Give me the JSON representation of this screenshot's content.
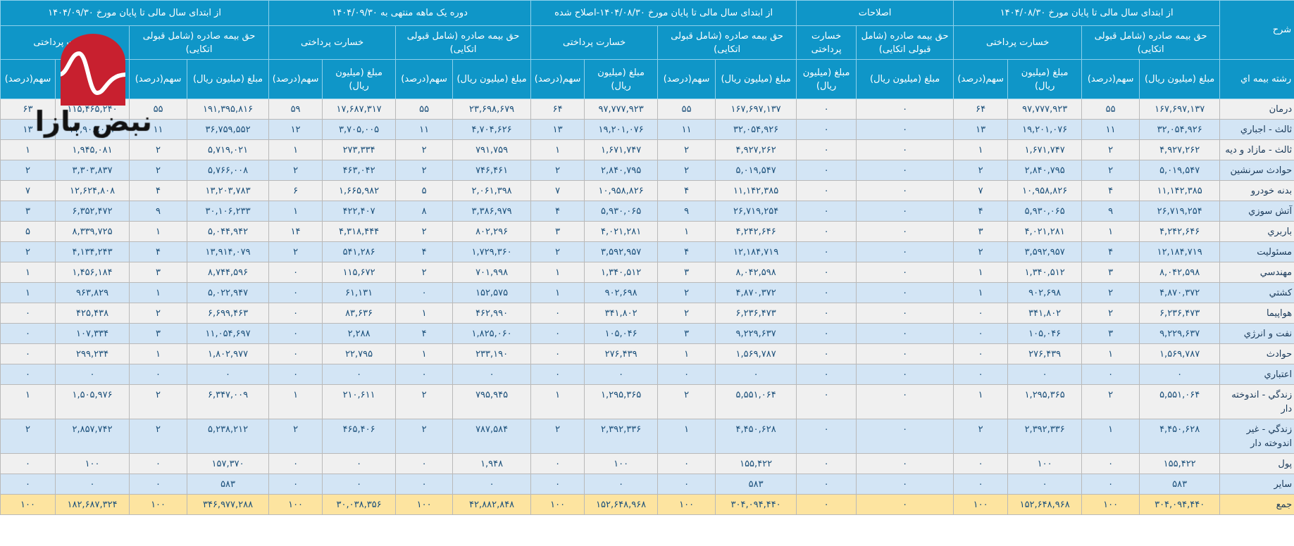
{
  "header": {
    "desc": "شرح",
    "row_label_header": "رشته بیمه اي",
    "groups": [
      "از ابتدای سال مالی تا پایان مورخ ۱۴۰۴/۰۸/۳۰",
      "اصلاحات",
      "از ابتدای سال مالی تا پایان مورخ ۱۴۰۴/۰۸/۳۰-اصلاح شده",
      "دوره یک ماهه منتهی به ۱۴۰۴/۰۹/۳۰",
      "از ابتدای سال مالی تا پایان مورخ ۱۴۰۴/۰۹/۳۰"
    ],
    "premium": "حق بیمه صادره (شامل قبولی اتکایی)",
    "loss": "خسارت پرداختی",
    "amount": "مبلغ (میلیون ریال)",
    "share": "سهم(درصد)"
  },
  "colors": {
    "header": "#0f96c8",
    "row_odd": "#f0f0f0",
    "row_even": "#d3e5f5",
    "total": "#fde4a0",
    "text": "#1a4f7a"
  },
  "logo": {
    "text": "نبض بازار",
    "color": "#c8202f"
  },
  "rows": [
    {
      "label": "درمان",
      "values": [
        "۱۶۷,۶۹۷,۱۳۷",
        "۵۵",
        "۹۷,۷۷۷,۹۲۳",
        "۶۴",
        "۰",
        "۰",
        "۱۶۷,۶۹۷,۱۳۷",
        "۵۵",
        "۹۷,۷۷۷,۹۲۳",
        "۶۴",
        "۲۳,۶۹۸,۶۷۹",
        "۵۵",
        "۱۷,۶۸۷,۳۱۷",
        "۵۹",
        "۱۹۱,۳۹۵,۸۱۶",
        "۵۵",
        "۱۱۵,۴۶۵,۲۴۰",
        "۶۳"
      ]
    },
    {
      "label": "ثالث - اجباري",
      "values": [
        "۳۲,۰۵۴,۹۲۶",
        "۱۱",
        "۱۹,۲۰۱,۰۷۶",
        "۱۳",
        "۰",
        "۰",
        "۳۲,۰۵۴,۹۲۶",
        "۱۱",
        "۱۹,۲۰۱,۰۷۶",
        "۱۳",
        "۴,۷۰۴,۶۲۶",
        "۱۱",
        "۳,۷۰۵,۰۰۵",
        "۱۲",
        "۳۶,۷۵۹,۵۵۲",
        "۱۱",
        "۲۲,۹۰۶,۰۸۱",
        "۱۳"
      ]
    },
    {
      "label": "ثالث - مازاد و ديه",
      "values": [
        "۴,۹۲۷,۲۶۲",
        "۲",
        "۱,۶۷۱,۷۴۷",
        "۱",
        "۰",
        "۰",
        "۴,۹۲۷,۲۶۲",
        "۲",
        "۱,۶۷۱,۷۴۷",
        "۱",
        "۷۹۱,۷۵۹",
        "۲",
        "۲۷۳,۳۳۴",
        "۱",
        "۵,۷۱۹,۰۲۱",
        "۲",
        "۱,۹۴۵,۰۸۱",
        "۱"
      ]
    },
    {
      "label": "حوادث سرنشين",
      "values": [
        "۵,۰۱۹,۵۴۷",
        "۲",
        "۲,۸۴۰,۷۹۵",
        "۲",
        "۰",
        "۰",
        "۵,۰۱۹,۵۴۷",
        "۲",
        "۲,۸۴۰,۷۹۵",
        "۲",
        "۷۴۶,۴۶۱",
        "۲",
        "۴۶۳,۰۴۲",
        "۲",
        "۵,۷۶۶,۰۰۸",
        "۲",
        "۳,۳۰۳,۸۳۷",
        "۲"
      ]
    },
    {
      "label": "بدنه خودرو",
      "values": [
        "۱۱,۱۴۲,۳۸۵",
        "۴",
        "۱۰,۹۵۸,۸۲۶",
        "۷",
        "۰",
        "۰",
        "۱۱,۱۴۲,۳۸۵",
        "۴",
        "۱۰,۹۵۸,۸۲۶",
        "۷",
        "۲,۰۶۱,۳۹۸",
        "۵",
        "۱,۶۶۵,۹۸۲",
        "۶",
        "۱۳,۲۰۳,۷۸۳",
        "۴",
        "۱۲,۶۲۴,۸۰۸",
        "۷"
      ]
    },
    {
      "label": "آتش سوزي",
      "values": [
        "۲۶,۷۱۹,۲۵۴",
        "۹",
        "۵,۹۳۰,۰۶۵",
        "۴",
        "۰",
        "۰",
        "۲۶,۷۱۹,۲۵۴",
        "۹",
        "۵,۹۳۰,۰۶۵",
        "۴",
        "۳,۳۸۶,۹۷۹",
        "۸",
        "۴۲۲,۴۰۷",
        "۱",
        "۳۰,۱۰۶,۲۳۳",
        "۹",
        "۶,۳۵۲,۴۷۲",
        "۳"
      ]
    },
    {
      "label": "باربري",
      "values": [
        "۴,۲۴۲,۶۴۶",
        "۱",
        "۴,۰۲۱,۲۸۱",
        "۳",
        "۰",
        "۰",
        "۴,۲۴۲,۶۴۶",
        "۱",
        "۴,۰۲۱,۲۸۱",
        "۳",
        "۸۰۲,۲۹۶",
        "۲",
        "۴,۳۱۸,۴۴۴",
        "۱۴",
        "۵,۰۴۴,۹۴۲",
        "۱",
        "۸,۳۳۹,۷۲۵",
        "۵"
      ]
    },
    {
      "label": "مسئوليت",
      "values": [
        "۱۲,۱۸۴,۷۱۹",
        "۴",
        "۳,۵۹۲,۹۵۷",
        "۲",
        "۰",
        "۰",
        "۱۲,۱۸۴,۷۱۹",
        "۴",
        "۳,۵۹۲,۹۵۷",
        "۲",
        "۱,۷۲۹,۳۶۰",
        "۴",
        "۵۴۱,۲۸۶",
        "۲",
        "۱۳,۹۱۴,۰۷۹",
        "۴",
        "۴,۱۳۴,۲۴۳",
        "۲"
      ]
    },
    {
      "label": "مهندسي",
      "values": [
        "۸,۰۴۲,۵۹۸",
        "۳",
        "۱,۳۴۰,۵۱۲",
        "۱",
        "۰",
        "۰",
        "۸,۰۴۲,۵۹۸",
        "۳",
        "۱,۳۴۰,۵۱۲",
        "۱",
        "۷۰۱,۹۹۸",
        "۲",
        "۱۱۵,۶۷۲",
        "۰",
        "۸,۷۴۴,۵۹۶",
        "۳",
        "۱,۴۵۶,۱۸۴",
        "۱"
      ]
    },
    {
      "label": "كشتي",
      "values": [
        "۴,۸۷۰,۳۷۲",
        "۲",
        "۹۰۲,۶۹۸",
        "۱",
        "۰",
        "۰",
        "۴,۸۷۰,۳۷۲",
        "۲",
        "۹۰۲,۶۹۸",
        "۱",
        "۱۵۲,۵۷۵",
        "۰",
        "۶۱,۱۳۱",
        "۰",
        "۵,۰۲۲,۹۴۷",
        "۱",
        "۹۶۳,۸۲۹",
        "۱"
      ]
    },
    {
      "label": "هواپيما",
      "values": [
        "۶,۲۳۶,۴۷۳",
        "۲",
        "۳۴۱,۸۰۲",
        "۰",
        "۰",
        "۰",
        "۶,۲۳۶,۴۷۳",
        "۲",
        "۳۴۱,۸۰۲",
        "۰",
        "۴۶۲,۹۹۰",
        "۱",
        "۸۳,۶۳۶",
        "۰",
        "۶,۶۹۹,۴۶۳",
        "۲",
        "۴۲۵,۴۳۸",
        "۰"
      ]
    },
    {
      "label": "نفت و انرژي",
      "values": [
        "۹,۲۲۹,۶۳۷",
        "۳",
        "۱۰۵,۰۴۶",
        "۰",
        "۰",
        "۰",
        "۹,۲۲۹,۶۳۷",
        "۳",
        "۱۰۵,۰۴۶",
        "۰",
        "۱,۸۲۵,۰۶۰",
        "۴",
        "۲,۲۸۸",
        "۰",
        "۱۱,۰۵۴,۶۹۷",
        "۳",
        "۱۰۷,۳۳۴",
        "۰"
      ]
    },
    {
      "label": "حوادث",
      "values": [
        "۱,۵۶۹,۷۸۷",
        "۱",
        "۲۷۶,۴۳۹",
        "۰",
        "۰",
        "۰",
        "۱,۵۶۹,۷۸۷",
        "۱",
        "۲۷۶,۴۳۹",
        "۰",
        "۲۳۳,۱۹۰",
        "۱",
        "۲۲,۷۹۵",
        "۰",
        "۱,۸۰۲,۹۷۷",
        "۱",
        "۲۹۹,۲۳۴",
        "۰"
      ]
    },
    {
      "label": "اعتباري",
      "values": [
        "۰",
        "۰",
        "۰",
        "۰",
        "۰",
        "۰",
        "۰",
        "۰",
        "۰",
        "۰",
        "۰",
        "۰",
        "۰",
        "۰",
        "۰",
        "۰",
        "۰",
        "۰"
      ]
    },
    {
      "label": "زندگي - اندوخته دار",
      "values": [
        "۵,۵۵۱,۰۶۴",
        "۲",
        "۱,۲۹۵,۳۶۵",
        "۱",
        "۰",
        "۰",
        "۵,۵۵۱,۰۶۴",
        "۲",
        "۱,۲۹۵,۳۶۵",
        "۱",
        "۷۹۵,۹۴۵",
        "۲",
        "۲۱۰,۶۱۱",
        "۱",
        "۶,۳۴۷,۰۰۹",
        "۲",
        "۱,۵۰۵,۹۷۶",
        "۱"
      ]
    },
    {
      "label": "زندگي - غير اندوخته دار",
      "values": [
        "۴,۴۵۰,۶۲۸",
        "۱",
        "۲,۳۹۲,۳۳۶",
        "۲",
        "۰",
        "۰",
        "۴,۴۵۰,۶۲۸",
        "۱",
        "۲,۳۹۲,۳۳۶",
        "۲",
        "۷۸۷,۵۸۴",
        "۲",
        "۴۶۵,۴۰۶",
        "۲",
        "۵,۲۳۸,۲۱۲",
        "۲",
        "۲,۸۵۷,۷۴۲",
        "۲"
      ]
    },
    {
      "label": "پول",
      "values": [
        "۱۵۵,۴۲۲",
        "۰",
        "۱۰۰",
        "۰",
        "۰",
        "۰",
        "۱۵۵,۴۲۲",
        "۰",
        "۱۰۰",
        "۰",
        "۱,۹۴۸",
        "۰",
        "۰",
        "۰",
        "۱۵۷,۳۷۰",
        "۰",
        "۱۰۰",
        "۰"
      ]
    },
    {
      "label": "ساير",
      "values": [
        "۵۸۳",
        "۰",
        "۰",
        "۰",
        "۰",
        "۰",
        "۵۸۳",
        "۰",
        "۰",
        "۰",
        "۰",
        "۰",
        "۰",
        "۰",
        "۵۸۳",
        "۰",
        "۰",
        "۰"
      ]
    },
    {
      "label": "جمع",
      "total": true,
      "values": [
        "۳۰۴,۰۹۴,۴۴۰",
        "۱۰۰",
        "۱۵۲,۶۴۸,۹۶۸",
        "۱۰۰",
        "۰",
        "۰",
        "۳۰۴,۰۹۴,۴۴۰",
        "۱۰۰",
        "۱۵۲,۶۴۸,۹۶۸",
        "۱۰۰",
        "۴۲,۸۸۲,۸۴۸",
        "۱۰۰",
        "۳۰,۰۳۸,۳۵۶",
        "۱۰۰",
        "۳۴۶,۹۷۷,۲۸۸",
        "۱۰۰",
        "۱۸۲,۶۸۷,۳۲۴",
        "۱۰۰"
      ]
    }
  ]
}
